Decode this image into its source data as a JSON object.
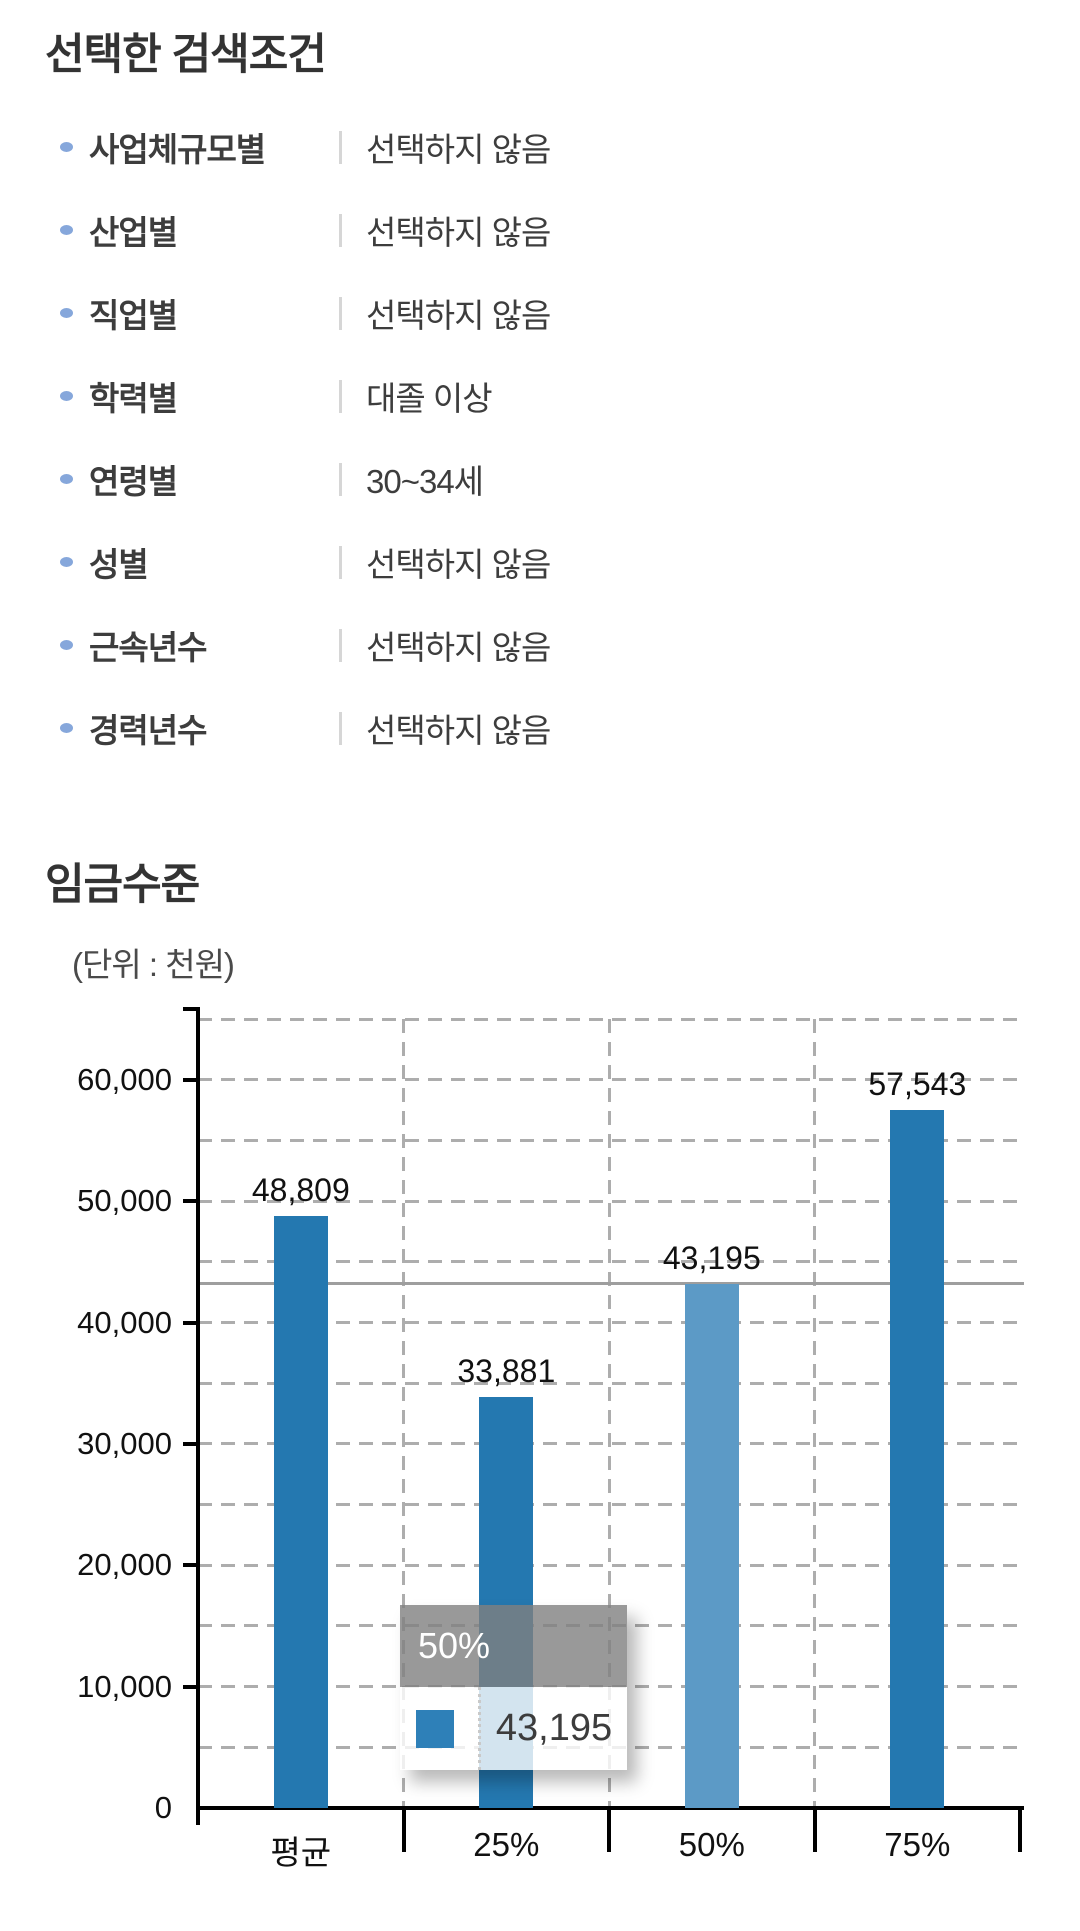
{
  "conditions": {
    "title": "선택한 검색조건",
    "items": [
      {
        "label": "사업체규모별",
        "value": "선택하지 않음"
      },
      {
        "label": "산업별",
        "value": "선택하지 않음"
      },
      {
        "label": "직업별",
        "value": "선택하지 않음"
      },
      {
        "label": "학력별",
        "value": "대졸 이상"
      },
      {
        "label": "연령별",
        "value": "30~34세"
      },
      {
        "label": "성별",
        "value": "선택하지 않음"
      },
      {
        "label": "근속년수",
        "value": "선택하지 않음"
      },
      {
        "label": "경력년수",
        "value": "선택하지 않음"
      }
    ]
  },
  "wage": {
    "title": "임금수준",
    "unit_note": "(단위 : 천원)"
  },
  "chart_data": {
    "type": "bar",
    "title": "임금수준",
    "xlabel": "",
    "ylabel": "(단위 : 천원)",
    "categories": [
      "평균",
      "25%",
      "50%",
      "75%"
    ],
    "values": [
      48809,
      33881,
      43195,
      57543
    ],
    "highlight_index": 2,
    "y_ticks": [
      0,
      10000,
      20000,
      30000,
      40000,
      50000,
      60000
    ],
    "ylim": [
      0,
      65000
    ],
    "grid_step": 5000,
    "grid": true,
    "legend_position": "none",
    "reference_line_value": 43195,
    "colors": {
      "bar": "#2478b0",
      "bar_highlight": "#5c9ac6",
      "grid": "#adadad",
      "reference_line": "#9e9e9e",
      "axis": "#000000",
      "text": "#111111"
    },
    "tooltip": {
      "title": "50%",
      "value": 43195,
      "swatch_color": "#2e80b8"
    }
  }
}
